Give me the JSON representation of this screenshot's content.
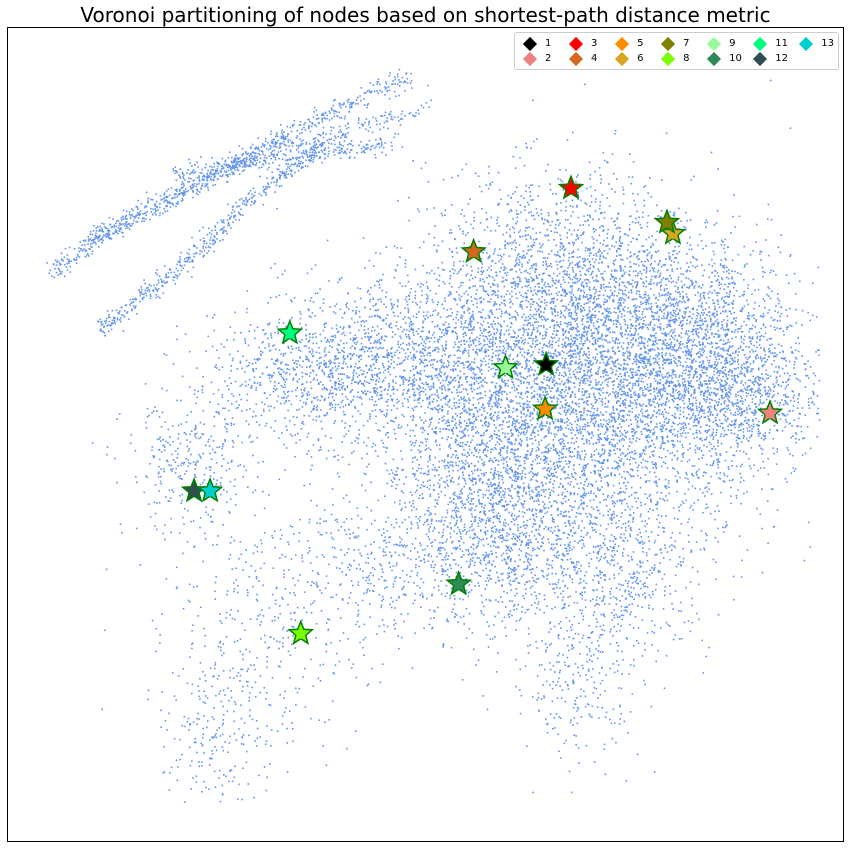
{
  "chart_data": {
    "type": "scatter",
    "title": "Voronoi partitioning of nodes based on shortest-path distance metric",
    "xlabel": "",
    "ylabel": "",
    "grid": false,
    "axes_visible": false,
    "legend_placement": "top-right",
    "legend_columns": 6,
    "node_color": "#6495ED",
    "center_marker": "star",
    "center_edge_color": "#008000",
    "series": [
      {
        "name": "1",
        "marker": "diamond",
        "color": "#000000",
        "x": 0.6429,
        "y": 0.5869
      },
      {
        "name": "2",
        "marker": "diamond",
        "color": "#F08080",
        "x": 0.9104,
        "y": 0.5275
      },
      {
        "name": "3",
        "marker": "diamond",
        "color": "#FF0000",
        "x": 0.6726,
        "y": 0.8033
      },
      {
        "name": "4",
        "marker": "diamond",
        "color": "#D2691E",
        "x": 0.5563,
        "y": 0.7255
      },
      {
        "name": "5",
        "marker": "diamond",
        "color": "#FF8C00",
        "x": 0.6417,
        "y": 0.5324
      },
      {
        "name": "6",
        "marker": "diamond",
        "color": "#DAA520",
        "x": 0.7944,
        "y": 0.748
      },
      {
        "name": "7",
        "marker": "diamond",
        "color": "#808000",
        "x": 0.7873,
        "y": 0.7615
      },
      {
        "name": "8",
        "marker": "diamond",
        "color": "#7CFC00",
        "x": 0.3498,
        "y": 0.257
      },
      {
        "name": "9",
        "marker": "diamond",
        "color": "#98FB98",
        "x": 0.5944,
        "y": 0.5832
      },
      {
        "name": "10",
        "marker": "diamond",
        "color": "#2E8B57",
        "x": 0.5384,
        "y": 0.3178
      },
      {
        "name": "11",
        "marker": "diamond",
        "color": "#00FF7F",
        "x": 0.3367,
        "y": 0.6257
      },
      {
        "name": "12",
        "marker": "diamond",
        "color": "#2F4F4F",
        "x": 0.2223,
        "y": 0.4319
      },
      {
        "name": "13",
        "marker": "diamond",
        "color": "#00CED1",
        "x": 0.2415,
        "y": 0.4319
      }
    ]
  }
}
